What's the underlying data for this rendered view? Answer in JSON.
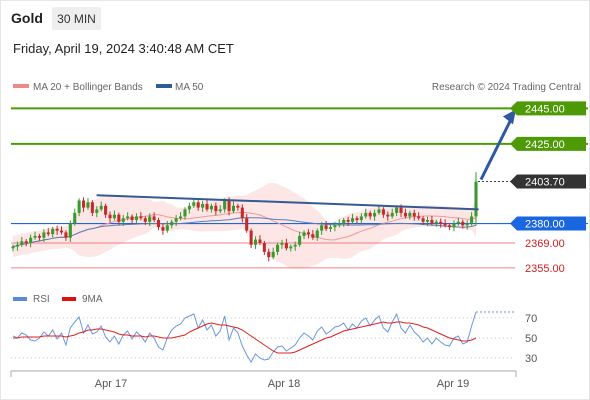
{
  "header": {
    "symbol": "Gold",
    "timeframe": "30 MIN",
    "datetime": "Friday, April 19, 2024 3:40:48 AM CET"
  },
  "chart_data": [
    {
      "type": "candlestick",
      "legend": [
        {
          "label": "MA 20 + Bollinger Bands",
          "color": "#f08a8a"
        },
        {
          "label": "MA 50",
          "color": "#2e5c9a"
        }
      ],
      "watermark": "Research © 2024 Trading Central",
      "x_ticks": [
        "Apr 17",
        "Apr 18",
        "Apr 19"
      ],
      "y_range": [
        2347,
        2452
      ],
      "current_price": 2403.7,
      "levels": [
        {
          "value": 2445.0,
          "label": "2445.00",
          "kind": "resistance",
          "color": "#4e9a06"
        },
        {
          "value": 2425.0,
          "label": "2425.00",
          "kind": "resistance",
          "color": "#4e9a06"
        },
        {
          "value": 2403.7,
          "label": "2403.70",
          "kind": "last",
          "color": "#333333"
        },
        {
          "value": 2380.0,
          "label": "2380.00",
          "kind": "pivot",
          "color": "#1a66e0"
        },
        {
          "value": 2369.0,
          "label": "2369.00",
          "kind": "support",
          "color": "#e03030"
        },
        {
          "value": 2355.0,
          "label": "2355.00",
          "kind": "support",
          "color": "#e03030"
        }
      ],
      "trendline": {
        "from": [
          2396,
          "Apr 16 22:00"
        ],
        "to": [
          2388,
          "Apr 19 03:00"
        ]
      },
      "projection_target": 2445.0,
      "close": [
        2367,
        2368,
        2370,
        2369,
        2372,
        2373,
        2372,
        2375,
        2374,
        2377,
        2376,
        2375,
        2372,
        2380,
        2386,
        2393,
        2389,
        2392,
        2386,
        2388,
        2390,
        2385,
        2383,
        2385,
        2381,
        2383,
        2384,
        2382,
        2384,
        2383,
        2381,
        2384,
        2382,
        2378,
        2376,
        2379,
        2381,
        2383,
        2384,
        2388,
        2390,
        2392,
        2389,
        2391,
        2388,
        2390,
        2387,
        2388,
        2393,
        2387,
        2390,
        2389,
        2383,
        2376,
        2368,
        2371,
        2369,
        2364,
        2361,
        2364,
        2368,
        2369,
        2366,
        2367,
        2368,
        2373,
        2375,
        2374,
        2372,
        2376,
        2379,
        2377,
        2378,
        2379,
        2380,
        2382,
        2381,
        2383,
        2382,
        2384,
        2386,
        2384,
        2386,
        2388,
        2385,
        2384,
        2386,
        2389,
        2386,
        2384,
        2386,
        2384,
        2383,
        2381,
        2382,
        2380,
        2381,
        2380,
        2379,
        2378,
        2380,
        2381,
        2379,
        2380,
        2384,
        2403.7
      ]
    },
    {
      "type": "line",
      "legend": [
        {
          "label": "RSI",
          "color": "#5b8bd6"
        },
        {
          "label": "9MA",
          "color": "#e01010"
        }
      ],
      "y_ticks": [
        70,
        50,
        30
      ],
      "y_range": [
        20,
        80
      ],
      "series": [
        {
          "name": "RSI",
          "values": [
            52,
            50,
            55,
            53,
            48,
            47,
            50,
            56,
            52,
            58,
            49,
            55,
            43,
            60,
            66,
            71,
            55,
            63,
            54,
            56,
            62,
            51,
            46,
            52,
            44,
            53,
            57,
            49,
            56,
            52,
            46,
            55,
            50,
            41,
            38,
            50,
            58,
            62,
            64,
            70,
            72,
            74,
            60,
            68,
            58,
            63,
            52,
            57,
            72,
            48,
            60,
            55,
            42,
            33,
            26,
            34,
            30,
            28,
            29,
            36,
            41,
            42,
            37,
            40,
            43,
            50,
            55,
            52,
            48,
            57,
            61,
            54,
            57,
            61,
            62,
            65,
            58,
            64,
            60,
            67,
            70,
            62,
            68,
            72,
            60,
            56,
            66,
            74,
            60,
            55,
            63,
            56,
            52,
            46,
            50,
            44,
            50,
            46,
            43,
            42,
            50,
            52,
            44,
            46,
            62,
            76
          ]
        },
        {
          "name": "9MA",
          "values": [
            50,
            50,
            51,
            51,
            51,
            51,
            51,
            52,
            52,
            52,
            52,
            52,
            51,
            52,
            53,
            55,
            56,
            58,
            58,
            59,
            59,
            58,
            57,
            56,
            54,
            53,
            53,
            52,
            52,
            52,
            51,
            52,
            52,
            51,
            50,
            50,
            50,
            51,
            52,
            53,
            56,
            58,
            60,
            62,
            64,
            65,
            64,
            63,
            63,
            62,
            61,
            60,
            58,
            55,
            52,
            49,
            46,
            43,
            40,
            37,
            35,
            35,
            35,
            35,
            36,
            38,
            40,
            42,
            44,
            46,
            48,
            50,
            51,
            53,
            55,
            57,
            58,
            59,
            60,
            61,
            62,
            63,
            64,
            65,
            66,
            65,
            65,
            66,
            66,
            65,
            65,
            64,
            63,
            61,
            60,
            58,
            56,
            54,
            52,
            50,
            49,
            48,
            47,
            47,
            48,
            50
          ]
        }
      ]
    }
  ]
}
